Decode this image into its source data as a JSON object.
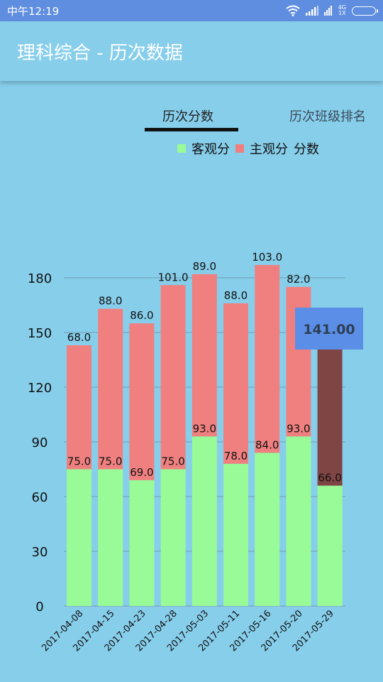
{
  "status": {
    "time": "中午12:19",
    "network_top": "4G",
    "network_bottom": "1X"
  },
  "app": {
    "title": "理科综合 - 历次数据"
  },
  "tabs": [
    {
      "label": "历次分数",
      "active": true
    },
    {
      "label": "历次班级排名",
      "active": false
    }
  ],
  "colors": {
    "objective": "#98fb98",
    "subjective": "#f08080",
    "highlight_bar": "#7f4444",
    "highlight_box": "#5b8ee6",
    "status_bar": "#5f8ee0",
    "background": "#87ceeb"
  },
  "chart_data": {
    "type": "bar",
    "stacked": true,
    "categories": [
      "2017-04-08",
      "2017-04-15",
      "2017-04-23",
      "2017-04-28",
      "2017-05-03",
      "2017-05-11",
      "2017-05-16",
      "2017-05-20",
      "2017-05-29"
    ],
    "series": [
      {
        "name": "客观分",
        "values": [
          75,
          75,
          69,
          75,
          93,
          78,
          84,
          93,
          66
        ]
      },
      {
        "name": "主观分",
        "values": [
          68,
          88,
          86,
          101,
          89,
          88,
          103,
          82,
          75
        ]
      }
    ],
    "value_labels": [
      [
        "75.0",
        "75.0",
        "69.0",
        "75.0",
        "93.0",
        "78.0",
        "84.0",
        "93.0",
        "66.0"
      ],
      [
        "68.0",
        "88.0",
        "86.0",
        "101.0",
        "89.0",
        "88.0",
        "103.0",
        "82.0",
        ""
      ]
    ],
    "legend_suffix": "分数",
    "legend_position": "top-right",
    "y_ticks": [
      "0",
      "30",
      "60",
      "90",
      "120",
      "150",
      "180"
    ],
    "ylim": [
      0,
      180
    ],
    "grid": true,
    "highlight": {
      "index": 8,
      "label": "141.00"
    },
    "xlabel": "",
    "ylabel": ""
  }
}
